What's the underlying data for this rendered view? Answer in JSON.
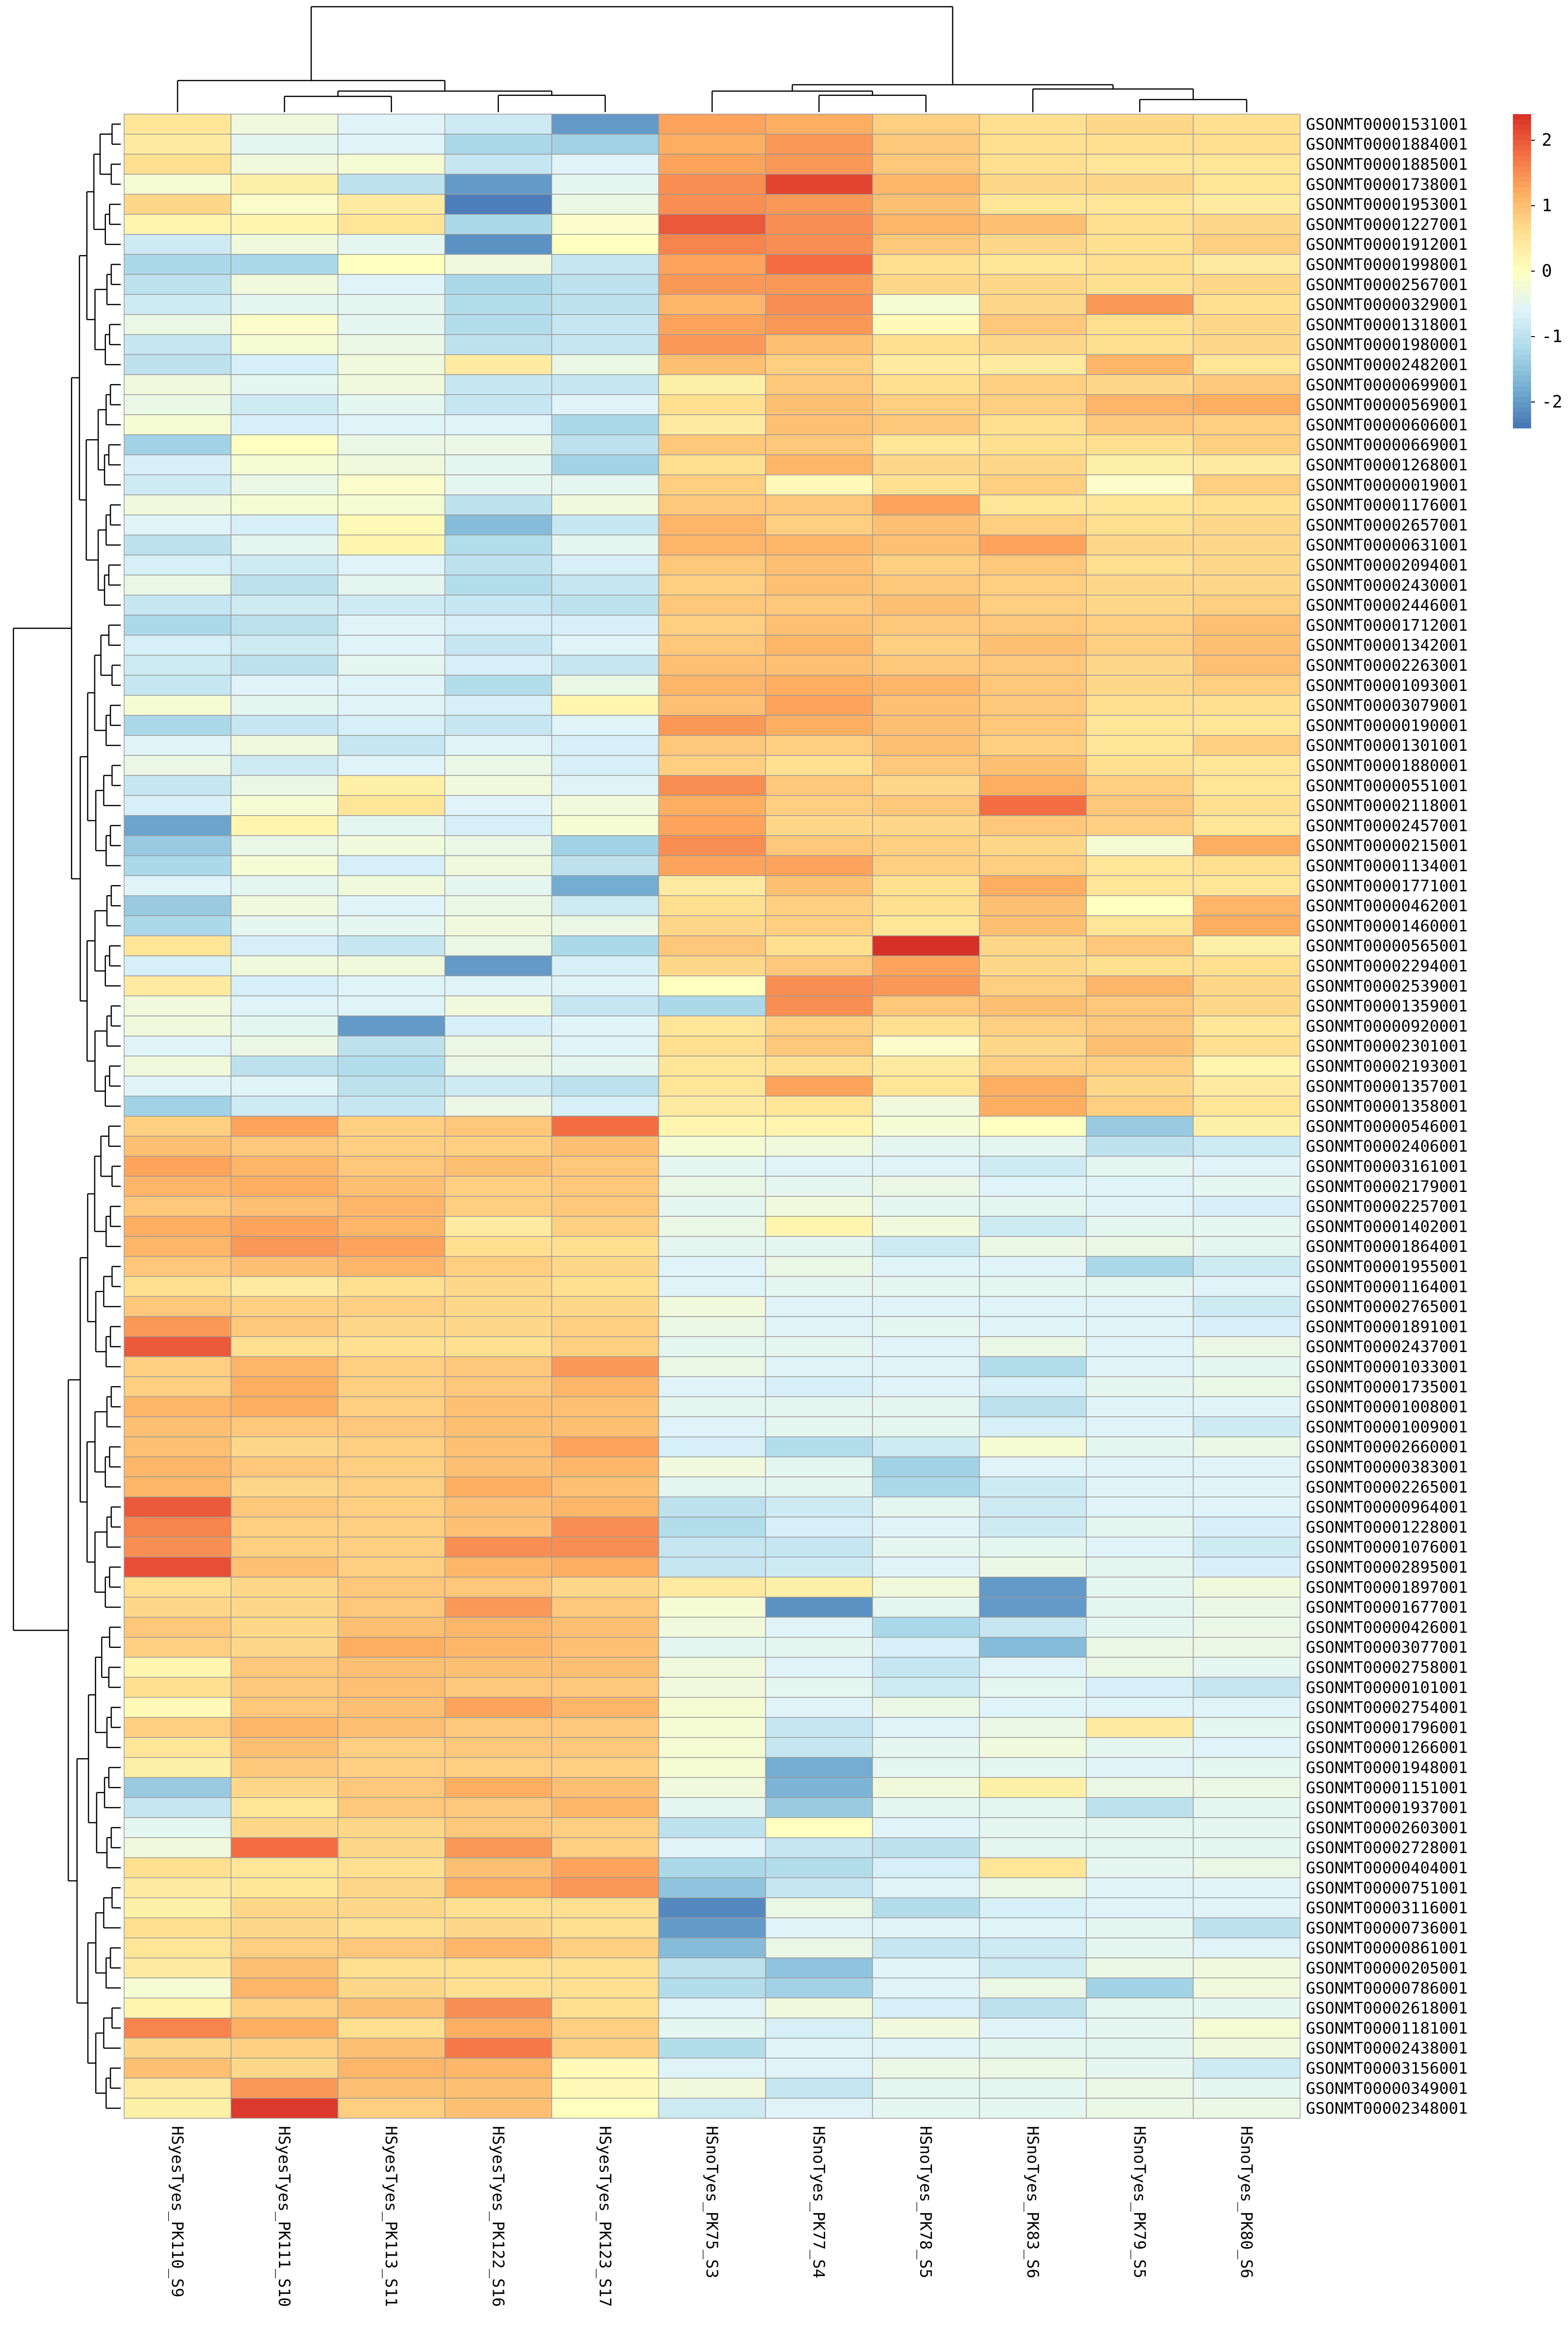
{
  "chart_data": {
    "type": "heatmap",
    "columns": [
      "HSyesTyes_PK110_S9",
      "HSyesTyes_PK111_S10",
      "HSyesTyes_PK113_S11",
      "HSyesTyes_PK122_S16",
      "HSyesTyes_PK123_S17",
      "HSnoTyes_PK75_S3",
      "HSnoTyes_PK77_S4",
      "HSnoTyes_PK78_S5",
      "HSnoTyes_PK83_S6",
      "HSnoTyes_PK79_S5",
      "HSnoTyes_PK80_S6"
    ],
    "rows": [
      "GSONMT00001531001",
      "GSONMT00001884001",
      "GSONMT00001885001",
      "GSONMT00001738001",
      "GSONMT00001953001",
      "GSONMT00001227001",
      "GSONMT00001912001",
      "GSONMT00001998001",
      "GSONMT00002567001",
      "GSONMT00000329001",
      "GSONMT00001318001",
      "GSONMT00001980001",
      "GSONMT00002482001",
      "GSONMT00000699001",
      "GSONMT00000569001",
      "GSONMT00000606001",
      "GSONMT00000669001",
      "GSONMT00001268001",
      "GSONMT00000019001",
      "GSONMT00001176001",
      "GSONMT00002657001",
      "GSONMT00000631001",
      "GSONMT00002094001",
      "GSONMT00002430001",
      "GSONMT00002446001",
      "GSONMT00001712001",
      "GSONMT00001342001",
      "GSONMT00002263001",
      "GSONMT00001093001",
      "GSONMT00003079001",
      "GSONMT00000190001",
      "GSONMT00001301001",
      "GSONMT00001880001",
      "GSONMT00000551001",
      "GSONMT00002118001",
      "GSONMT00002457001",
      "GSONMT00000215001",
      "GSONMT00001134001",
      "GSONMT00001771001",
      "GSONMT00000462001",
      "GSONMT00001460001",
      "GSONMT00000565001",
      "GSONMT00002294001",
      "GSONMT00002539001",
      "GSONMT00001359001",
      "GSONMT00000920001",
      "GSONMT00002301001",
      "GSONMT00002193001",
      "GSONMT00001357001",
      "GSONMT00001358001",
      "GSONMT00000546001",
      "GSONMT00002406001",
      "GSONMT00003161001",
      "GSONMT00002179001",
      "GSONMT00002257001",
      "GSONMT00001402001",
      "GSONMT00001864001",
      "GSONMT00001955001",
      "GSONMT00001164001",
      "GSONMT00002765001",
      "GSONMT00001891001",
      "GSONMT00002437001",
      "GSONMT00001033001",
      "GSONMT00001735001",
      "GSONMT00001008001",
      "GSONMT00001009001",
      "GSONMT00002660001",
      "GSONMT00000383001",
      "GSONMT00002265001",
      "GSONMT00000964001",
      "GSONMT00001228001",
      "GSONMT00001076001",
      "GSONMT00002895001",
      "GSONMT00001897001",
      "GSONMT00001677001",
      "GSONMT00000426001",
      "GSONMT00003077001",
      "GSONMT00002758001",
      "GSONMT00000101001",
      "GSONMT00002754001",
      "GSONMT00001796001",
      "GSONMT00001266001",
      "GSONMT00001948001",
      "GSONMT00001151001",
      "GSONMT00001937001",
      "GSONMT00002603001",
      "GSONMT00002728001",
      "GSONMT00000404001",
      "GSONMT00000751001",
      "GSONMT00003116001",
      "GSONMT00000736001",
      "GSONMT00000861001",
      "GSONMT00000205001",
      "GSONMT00000786001",
      "GSONMT00002618001",
      "GSONMT00001181001",
      "GSONMT00002438001",
      "GSONMT00003156001",
      "GSONMT00000349001",
      "GSONMT00002348001"
    ],
    "values": [
      [
        0.5,
        -0.3,
        -0.6,
        -0.8,
        -2.0,
        1.3,
        1.2,
        0.8,
        0.6,
        0.7,
        0.6
      ],
      [
        0.4,
        -0.5,
        -0.6,
        -1.2,
        -1.3,
        1.2,
        1.4,
        0.9,
        0.6,
        0.6,
        0.6
      ],
      [
        0.6,
        -0.3,
        -0.2,
        -0.9,
        -0.6,
        1.3,
        1.4,
        0.9,
        0.6,
        0.5,
        0.5
      ],
      [
        -0.2,
        0.3,
        -1.0,
        -2.0,
        -0.5,
        1.5,
        2.2,
        1.1,
        0.7,
        0.7,
        0.5
      ],
      [
        0.7,
        -0.1,
        0.4,
        -2.3,
        -0.4,
        1.5,
        1.4,
        1.0,
        0.5,
        0.5,
        0.4
      ],
      [
        0.2,
        0.2,
        0.5,
        -1.2,
        -0.1,
        2.0,
        1.5,
        1.1,
        1.0,
        0.6,
        0.7
      ],
      [
        -0.8,
        -0.3,
        -0.5,
        -2.1,
        0.0,
        1.6,
        1.5,
        0.9,
        0.7,
        0.6,
        0.8
      ],
      [
        -1.2,
        -1.2,
        0.0,
        -0.3,
        -0.9,
        1.3,
        1.8,
        0.6,
        0.5,
        0.6,
        0.4
      ],
      [
        -1.0,
        -0.3,
        -0.6,
        -1.2,
        -1.0,
        1.4,
        1.4,
        0.7,
        0.7,
        0.6,
        0.7
      ],
      [
        -0.8,
        -0.5,
        -0.5,
        -1.1,
        -1.0,
        1.1,
        1.5,
        -0.2,
        0.7,
        1.4,
        0.6
      ],
      [
        -0.4,
        -0.1,
        -0.5,
        -1.1,
        -0.9,
        1.3,
        1.4,
        0.1,
        0.9,
        0.6,
        0.7
      ],
      [
        -0.9,
        -0.2,
        -0.4,
        -1.0,
        -0.9,
        1.4,
        1.0,
        0.6,
        0.7,
        0.6,
        0.7
      ],
      [
        -1.0,
        -0.7,
        -0.3,
        0.4,
        -0.4,
        1.0,
        0.8,
        0.4,
        0.4,
        1.1,
        0.5
      ],
      [
        -0.3,
        -0.5,
        -0.3,
        -0.9,
        -0.9,
        0.3,
        0.9,
        0.6,
        0.8,
        0.7,
        0.9
      ],
      [
        -0.4,
        -0.8,
        -0.5,
        -0.9,
        -0.6,
        0.6,
        1.0,
        0.8,
        0.8,
        1.1,
        1.2
      ],
      [
        -0.2,
        -0.7,
        -0.6,
        -0.6,
        -1.2,
        0.4,
        1.0,
        0.9,
        0.6,
        0.9,
        0.8
      ],
      [
        -1.3,
        0.0,
        -0.4,
        -0.4,
        -1.0,
        0.9,
        0.9,
        0.5,
        0.6,
        0.6,
        0.8
      ],
      [
        -0.7,
        -0.2,
        -0.3,
        -0.5,
        -1.3,
        0.6,
        1.1,
        0.7,
        0.7,
        0.3,
        0.4
      ],
      [
        -0.8,
        -0.4,
        -0.1,
        -0.5,
        -0.5,
        0.8,
        0.1,
        0.6,
        0.8,
        -0.1,
        0.8
      ],
      [
        -0.3,
        -0.2,
        -0.2,
        -1.0,
        -0.3,
        0.9,
        0.9,
        1.3,
        0.5,
        0.5,
        0.6
      ],
      [
        -0.6,
        -0.7,
        0.1,
        -1.6,
        -0.9,
        1.1,
        0.8,
        1.0,
        0.8,
        0.6,
        0.7
      ],
      [
        -1.0,
        -0.5,
        0.2,
        -1.1,
        -0.5,
        1.1,
        1.1,
        1.0,
        1.3,
        0.7,
        0.7
      ],
      [
        -0.7,
        -0.8,
        -0.6,
        -1.0,
        -0.7,
        0.9,
        1.0,
        0.8,
        0.9,
        0.6,
        0.7
      ],
      [
        -0.4,
        -1.0,
        -0.5,
        -1.1,
        -0.9,
        0.8,
        1.0,
        0.9,
        0.8,
        0.7,
        0.7
      ],
      [
        -0.9,
        -0.8,
        -0.8,
        -0.9,
        -1.0,
        0.9,
        0.9,
        1.0,
        0.8,
        0.7,
        0.8
      ],
      [
        -1.2,
        -1.0,
        -0.6,
        -0.7,
        -0.7,
        0.8,
        1.0,
        0.9,
        0.9,
        0.8,
        1.0
      ],
      [
        -0.7,
        -0.8,
        -0.6,
        -0.9,
        -0.6,
        0.9,
        1.1,
        0.8,
        1.0,
        0.8,
        1.0
      ],
      [
        -0.8,
        -1.0,
        -0.5,
        -0.7,
        -0.9,
        1.0,
        1.0,
        0.9,
        0.9,
        0.7,
        1.0
      ],
      [
        -0.9,
        -0.6,
        -0.6,
        -1.1,
        -0.4,
        1.1,
        1.2,
        1.1,
        0.9,
        0.7,
        0.8
      ],
      [
        -0.2,
        -0.5,
        -0.6,
        -0.7,
        0.2,
        1.0,
        1.3,
        1.0,
        0.9,
        0.6,
        0.6
      ],
      [
        -1.2,
        -0.9,
        -0.7,
        -0.9,
        -0.6,
        1.4,
        1.2,
        1.0,
        0.9,
        0.5,
        0.5
      ],
      [
        -0.6,
        -0.3,
        -0.9,
        -0.6,
        -0.7,
        0.9,
        0.8,
        1.0,
        0.8,
        0.5,
        0.8
      ],
      [
        -0.4,
        -0.8,
        -0.6,
        -0.4,
        -0.7,
        0.8,
        0.6,
        0.9,
        1.0,
        0.6,
        0.5
      ],
      [
        -0.9,
        -0.4,
        0.3,
        -0.3,
        -0.6,
        1.5,
        0.9,
        0.7,
        1.2,
        0.8,
        0.5
      ],
      [
        -0.7,
        -0.2,
        0.5,
        -0.6,
        -0.3,
        1.2,
        0.8,
        0.9,
        1.8,
        0.9,
        0.6
      ],
      [
        -1.9,
        0.2,
        -0.5,
        -0.7,
        -0.2,
        1.3,
        0.7,
        0.7,
        0.9,
        0.8,
        0.5
      ],
      [
        -1.4,
        -0.4,
        -0.3,
        -0.4,
        -1.3,
        1.5,
        0.9,
        0.8,
        0.7,
        -0.2,
        1.2
      ],
      [
        -1.2,
        -0.2,
        -0.7,
        -0.3,
        -1.0,
        1.3,
        1.3,
        0.8,
        0.8,
        0.5,
        0.6
      ],
      [
        -0.6,
        -0.5,
        -0.3,
        -0.5,
        -1.8,
        0.4,
        1.0,
        0.6,
        1.2,
        0.5,
        0.5
      ],
      [
        -1.4,
        -0.3,
        -0.6,
        -0.4,
        -0.8,
        0.6,
        0.8,
        0.6,
        1.0,
        0.0,
        1.1
      ],
      [
        -1.2,
        -0.5,
        -0.5,
        -0.3,
        -0.4,
        0.7,
        0.8,
        0.5,
        1.0,
        0.5,
        1.2
      ],
      [
        0.5,
        -0.7,
        -0.9,
        -0.4,
        -1.2,
        0.9,
        0.6,
        2.4,
        0.7,
        0.9,
        0.3
      ],
      [
        -0.7,
        -0.3,
        -0.3,
        -2.0,
        -0.7,
        0.7,
        0.9,
        1.3,
        0.7,
        0.6,
        0.6
      ],
      [
        0.4,
        -0.7,
        -0.6,
        -0.6,
        -0.6,
        0.0,
        1.5,
        1.4,
        0.8,
        1.1,
        0.7
      ],
      [
        -0.3,
        -0.6,
        -0.6,
        -0.3,
        -0.9,
        -1.2,
        1.5,
        0.9,
        1.0,
        0.9,
        0.7
      ],
      [
        -0.3,
        -0.5,
        -2.0,
        -0.7,
        -0.6,
        0.5,
        0.8,
        0.6,
        0.8,
        0.9,
        0.5
      ],
      [
        -0.6,
        -0.4,
        -1.0,
        -0.4,
        -0.6,
        0.6,
        0.9,
        -0.1,
        0.7,
        1.0,
        0.6
      ],
      [
        -0.3,
        -1.0,
        -1.1,
        -0.4,
        -0.5,
        0.5,
        0.6,
        0.4,
        0.8,
        0.8,
        0.2
      ],
      [
        -0.6,
        -0.6,
        -1.0,
        -0.8,
        -1.0,
        0.5,
        1.3,
        0.5,
        1.2,
        0.7,
        0.4
      ],
      [
        -1.3,
        -0.8,
        -0.9,
        -0.4,
        -0.7,
        0.4,
        0.5,
        -0.3,
        1.2,
        0.8,
        0.5
      ],
      [
        0.8,
        1.3,
        0.8,
        0.9,
        1.8,
        0.2,
        0.2,
        -0.2,
        0.0,
        -1.4,
        0.3
      ],
      [
        1.0,
        0.9,
        0.8,
        0.8,
        1.0,
        -0.2,
        -0.3,
        -0.5,
        -0.5,
        -1.0,
        -0.8
      ],
      [
        1.3,
        1.1,
        0.9,
        1.0,
        0.9,
        -0.5,
        -0.6,
        -0.6,
        -0.8,
        -0.5,
        -0.6
      ],
      [
        1.1,
        1.2,
        1.0,
        0.8,
        0.9,
        -0.4,
        -0.5,
        -0.4,
        -0.6,
        -0.6,
        -0.5
      ],
      [
        0.9,
        1.0,
        1.1,
        0.8,
        0.9,
        -0.5,
        -0.3,
        -0.5,
        -0.5,
        -0.6,
        -0.7
      ],
      [
        1.2,
        1.3,
        1.1,
        0.4,
        0.8,
        -0.4,
        0.2,
        -0.3,
        -0.8,
        -0.5,
        -0.5
      ],
      [
        1.1,
        1.4,
        1.3,
        0.6,
        0.6,
        -0.5,
        -0.5,
        -0.8,
        -0.4,
        -0.4,
        -0.5
      ],
      [
        0.9,
        1.0,
        1.1,
        0.8,
        0.7,
        -0.6,
        -0.4,
        -0.6,
        -0.6,
        -1.2,
        -0.8
      ],
      [
        0.6,
        0.4,
        0.6,
        0.7,
        0.6,
        -0.6,
        -0.5,
        -0.5,
        -0.5,
        -0.5,
        -0.6
      ],
      [
        0.9,
        0.8,
        0.8,
        0.7,
        0.7,
        -0.3,
        -0.6,
        -0.6,
        -0.6,
        -0.6,
        -0.8
      ],
      [
        1.4,
        0.9,
        0.7,
        0.7,
        0.8,
        -0.4,
        -0.6,
        -0.5,
        -0.6,
        -0.6,
        -0.7
      ],
      [
        2.0,
        0.6,
        0.6,
        0.6,
        0.8,
        -0.5,
        -0.5,
        -0.6,
        -0.4,
        -0.6,
        -0.4
      ],
      [
        0.8,
        1.1,
        0.8,
        0.9,
        1.4,
        -0.4,
        -0.6,
        -0.6,
        -1.1,
        -0.6,
        -0.5
      ],
      [
        0.8,
        1.2,
        0.8,
        0.9,
        1.1,
        -0.6,
        -0.7,
        -0.6,
        -0.7,
        -0.5,
        -0.4
      ],
      [
        1.1,
        1.2,
        0.8,
        1.0,
        1.0,
        -0.5,
        -0.5,
        -0.5,
        -1.0,
        -0.6,
        -0.6
      ],
      [
        1.0,
        0.9,
        0.9,
        1.0,
        1.0,
        -0.6,
        -0.5,
        -0.5,
        -0.7,
        -0.6,
        -0.8
      ],
      [
        1.0,
        0.7,
        0.8,
        1.0,
        1.3,
        -0.7,
        -1.1,
        -0.8,
        -0.2,
        -0.5,
        -0.4
      ],
      [
        1.1,
        0.9,
        0.8,
        1.0,
        1.1,
        -0.3,
        -0.5,
        -1.3,
        -0.6,
        -0.6,
        -0.6
      ],
      [
        1.1,
        0.7,
        0.8,
        1.2,
        1.0,
        -0.5,
        -0.5,
        -1.2,
        -0.8,
        -0.6,
        -0.6
      ],
      [
        2.0,
        0.9,
        0.8,
        1.0,
        1.1,
        -1.0,
        -0.8,
        -0.5,
        -0.8,
        -0.6,
        -0.6
      ],
      [
        1.6,
        0.8,
        0.8,
        1.0,
        1.5,
        -1.1,
        -0.7,
        -0.6,
        -0.8,
        -0.5,
        -0.7
      ],
      [
        1.5,
        0.8,
        0.8,
        1.5,
        1.5,
        -0.9,
        -0.9,
        -0.5,
        -0.5,
        -0.6,
        -0.8
      ],
      [
        2.1,
        1.0,
        0.8,
        1.1,
        1.2,
        -0.9,
        -0.8,
        -0.6,
        -0.4,
        -0.5,
        -0.7
      ],
      [
        0.6,
        0.7,
        0.9,
        0.9,
        0.7,
        0.4,
        0.3,
        -0.3,
        -2.0,
        -0.5,
        -0.3
      ],
      [
        0.7,
        0.7,
        0.9,
        1.4,
        0.9,
        -0.2,
        -2.1,
        -0.5,
        -2.0,
        -0.5,
        -0.4
      ],
      [
        0.9,
        0.7,
        1.0,
        1.1,
        1.0,
        -0.3,
        -0.6,
        -1.2,
        -0.9,
        -0.5,
        -0.4
      ],
      [
        0.8,
        0.7,
        1.2,
        1.1,
        1.0,
        -0.5,
        -0.5,
        -0.7,
        -1.6,
        -0.4,
        -0.4
      ],
      [
        0.2,
        0.9,
        1.0,
        1.0,
        1.0,
        -0.3,
        -0.6,
        -0.9,
        -0.6,
        -0.4,
        -0.5
      ],
      [
        0.6,
        0.9,
        1.0,
        0.9,
        0.9,
        -0.3,
        -0.5,
        -0.8,
        -0.5,
        -0.7,
        -0.9
      ],
      [
        0.1,
        0.9,
        1.0,
        1.3,
        1.1,
        -0.2,
        -0.6,
        -0.4,
        -0.6,
        -0.6,
        -0.6
      ],
      [
        0.8,
        1.1,
        1.0,
        0.9,
        0.9,
        -0.2,
        -0.9,
        -0.6,
        -0.4,
        0.4,
        -0.5
      ],
      [
        0.5,
        1.0,
        0.8,
        0.9,
        0.9,
        -0.2,
        -0.9,
        -0.5,
        -0.3,
        -0.5,
        -0.6
      ],
      [
        0.3,
        0.9,
        0.8,
        0.8,
        0.8,
        -0.2,
        -1.8,
        -0.5,
        -0.5,
        -0.6,
        -0.5
      ],
      [
        -1.4,
        0.7,
        0.9,
        1.2,
        1.0,
        -0.3,
        -1.7,
        -0.3,
        0.3,
        -0.4,
        -0.4
      ],
      [
        -0.9,
        0.5,
        0.9,
        0.9,
        1.1,
        -0.5,
        -1.4,
        -0.5,
        -0.5,
        -1.0,
        -0.5
      ],
      [
        -0.5,
        0.7,
        0.7,
        0.9,
        0.8,
        -1.0,
        0.0,
        -0.6,
        -0.5,
        -0.5,
        -0.5
      ],
      [
        -0.3,
        1.8,
        0.7,
        1.4,
        0.8,
        -0.6,
        -0.9,
        -1.0,
        -0.5,
        -0.5,
        -0.5
      ],
      [
        0.6,
        0.5,
        0.6,
        1.0,
        1.3,
        -1.2,
        -1.1,
        -0.7,
        0.5,
        -0.5,
        -0.4
      ],
      [
        0.4,
        0.5,
        0.7,
        1.2,
        1.4,
        -1.5,
        -0.9,
        -0.6,
        -0.4,
        -0.6,
        -0.6
      ],
      [
        0.3,
        0.7,
        0.7,
        0.6,
        0.6,
        -2.2,
        -0.4,
        -1.1,
        -0.7,
        -0.6,
        -0.6
      ],
      [
        0.6,
        0.7,
        0.6,
        0.7,
        0.6,
        -2.0,
        -0.6,
        -0.6,
        -0.6,
        -0.5,
        -1.0
      ],
      [
        0.5,
        0.8,
        0.9,
        1.1,
        0.8,
        -1.6,
        -0.4,
        -0.9,
        -0.8,
        -0.5,
        -0.6
      ],
      [
        0.4,
        1.0,
        0.6,
        0.6,
        0.6,
        -1.0,
        -1.5,
        -0.6,
        -0.8,
        -0.4,
        -0.3
      ],
      [
        -0.2,
        1.1,
        0.7,
        0.6,
        0.6,
        -1.1,
        -1.3,
        -0.6,
        -0.4,
        -1.3,
        -0.3
      ],
      [
        0.2,
        0.8,
        1.0,
        1.5,
        0.6,
        -0.6,
        -0.3,
        -0.7,
        -1.0,
        -0.5,
        -0.5
      ],
      [
        1.6,
        1.2,
        0.6,
        1.2,
        0.8,
        -0.5,
        -0.7,
        -0.3,
        -0.6,
        -0.5,
        -0.2
      ],
      [
        0.7,
        0.8,
        1.0,
        1.7,
        0.8,
        -1.1,
        -0.6,
        -0.6,
        -0.5,
        -0.5,
        -0.3
      ],
      [
        1.0,
        0.7,
        1.1,
        1.1,
        0.1,
        -0.6,
        -0.6,
        -0.4,
        -0.4,
        -0.5,
        -0.8
      ],
      [
        0.4,
        1.4,
        1.0,
        1.0,
        0.1,
        -0.3,
        -0.9,
        -0.5,
        -0.5,
        -0.4,
        -0.5
      ],
      [
        0.3,
        2.3,
        0.8,
        1.0,
        0.0,
        -0.8,
        -0.6,
        -0.5,
        -0.5,
        -0.4,
        -0.4
      ]
    ],
    "colorbar": {
      "ticks": [
        2,
        1,
        0,
        -1,
        -2
      ],
      "range": [
        -2.4,
        2.4
      ]
    },
    "colors": {
      "low": "#4575B4",
      "mid": "#FFFFBF",
      "high": "#D73027"
    },
    "dendrograms": {
      "rows": true,
      "columns": true
    }
  }
}
